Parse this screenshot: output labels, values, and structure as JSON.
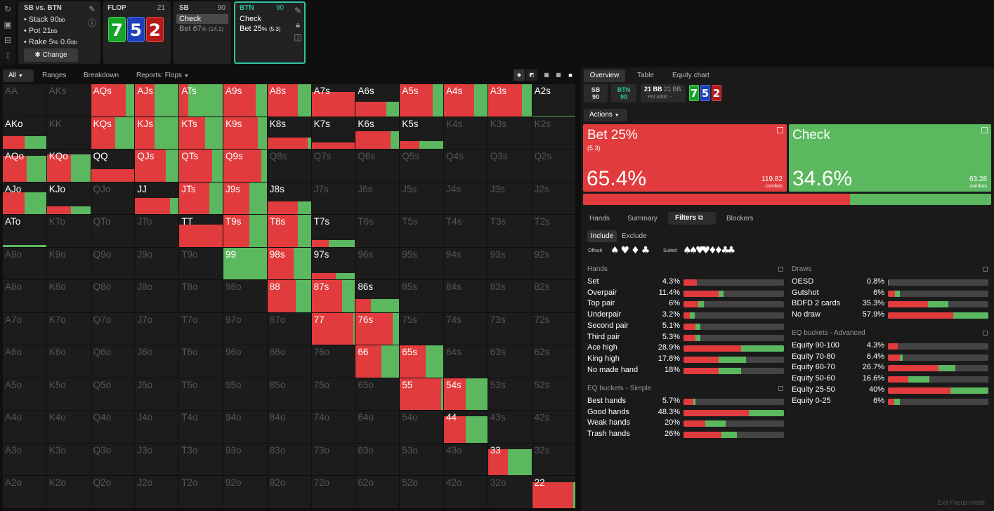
{
  "spot": {
    "title": "SB vs. BTN",
    "items": [
      "Stack 90",
      "Pot 21",
      "Rake 5",
      "0.6"
    ],
    "stack_sub": "bb",
    "pot_sub": "bb",
    "rake_pct": "%",
    "rake_sub": "bb",
    "change": "Change"
  },
  "flop": {
    "label": "FLOP",
    "num": "21",
    "cards": [
      "7",
      "5",
      "2"
    ]
  },
  "sb": {
    "label": "SB",
    "num": "90",
    "action1": "Check",
    "action2": "Bet 67",
    "action2_pct": "%",
    "action2_sub": "(14.1)"
  },
  "btn": {
    "label": "BTN",
    "num": "90",
    "action1": "Check",
    "action2": "Bet 25",
    "action2_pct": "%",
    "action2_sub": "(5.3)"
  },
  "left_tabs": {
    "all": "All",
    "ranges": "Ranges",
    "breakdown": "Breakdown",
    "reports": "Reports: Flops"
  },
  "matrix": {
    "rows": [
      [
        "AA",
        "AKs",
        "AQs",
        "AJs",
        "ATs",
        "A9s",
        "A8s",
        "A7s",
        "A6s",
        "A5s",
        "A4s",
        "A3s",
        "A2s"
      ],
      [
        "AKo",
        "KK",
        "KQs",
        "KJs",
        "KTs",
        "K9s",
        "K8s",
        "K7s",
        "K6s",
        "K5s",
        "K4s",
        "K3s",
        "K2s"
      ],
      [
        "AQo",
        "KQo",
        "QQ",
        "QJs",
        "QTs",
        "Q9s",
        "Q8s",
        "Q7s",
        "Q6s",
        "Q5s",
        "Q4s",
        "Q3s",
        "Q2s"
      ],
      [
        "AJo",
        "KJo",
        "QJo",
        "JJ",
        "JTs",
        "J9s",
        "J8s",
        "J7s",
        "J6s",
        "J5s",
        "J4s",
        "J3s",
        "J2s"
      ],
      [
        "ATo",
        "KTo",
        "QTo",
        "JTo",
        "TT",
        "T9s",
        "T8s",
        "T7s",
        "T6s",
        "T5s",
        "T4s",
        "T3s",
        "T2s"
      ],
      [
        "A9o",
        "K9o",
        "Q9o",
        "J9o",
        "T9o",
        "99",
        "98s",
        "97s",
        "96s",
        "95s",
        "94s",
        "93s",
        "92s"
      ],
      [
        "A8o",
        "K8o",
        "Q8o",
        "J8o",
        "T8o",
        "98o",
        "88",
        "87s",
        "86s",
        "85s",
        "84s",
        "83s",
        "82s"
      ],
      [
        "A7o",
        "K7o",
        "Q7o",
        "J7o",
        "T7o",
        "97o",
        "87o",
        "77",
        "76s",
        "75s",
        "74s",
        "73s",
        "72s"
      ],
      [
        "A6o",
        "K6o",
        "Q6o",
        "J6o",
        "T6o",
        "96o",
        "86o",
        "76o",
        "66",
        "65s",
        "64s",
        "63s",
        "62s"
      ],
      [
        "A5o",
        "K5o",
        "Q5o",
        "J5o",
        "T5o",
        "95o",
        "85o",
        "75o",
        "65o",
        "55",
        "54s",
        "53s",
        "52s"
      ],
      [
        "A4o",
        "K4o",
        "Q4o",
        "J4o",
        "T4o",
        "94o",
        "84o",
        "74o",
        "64o",
        "54o",
        "44",
        "43s",
        "42s"
      ],
      [
        "A3o",
        "K3o",
        "Q3o",
        "J3o",
        "T3o",
        "93o",
        "83o",
        "73o",
        "63o",
        "53o",
        "43o",
        "33",
        "32s"
      ],
      [
        "A2o",
        "K2o",
        "Q2o",
        "J2o",
        "T2o",
        "92o",
        "82o",
        "72o",
        "62o",
        "52o",
        "42o",
        "32o",
        "22"
      ]
    ],
    "freq": {
      "AQs": [
        1,
        0.8
      ],
      "AJs": [
        1,
        0.45
      ],
      "ATs": [
        1,
        0.2
      ],
      "A9s": [
        1,
        0.75
      ],
      "A8s": [
        1,
        0.7
      ],
      "A7s": [
        0.75,
        1
      ],
      "A6s": [
        0.45,
        0.7
      ],
      "A5s": [
        1,
        0.75
      ],
      "A4s": [
        1,
        0.7
      ],
      "A3s": [
        1,
        0.78
      ],
      "A2s": [
        0.02,
        0
      ],
      "AKo": [
        0.4,
        0.5
      ],
      "KQs": [
        1,
        0.55
      ],
      "KJs": [
        1,
        0.45
      ],
      "KTs": [
        1,
        0.6
      ],
      "K9s": [
        1,
        0.8
      ],
      "K8s": [
        0.35,
        0.92
      ],
      "K7s": [
        0.2,
        1
      ],
      "K6s": [
        0.55,
        0.8
      ],
      "K5s": [
        0.25,
        0.45
      ],
      "AQo": [
        0.8,
        0.55
      ],
      "KQo": [
        0.85,
        0.55
      ],
      "QQ": [
        0.38,
        1
      ],
      "QJs": [
        1,
        0.7
      ],
      "QTs": [
        1,
        0.75
      ],
      "Q9s": [
        1,
        0.88
      ],
      "AJo": [
        0.68,
        0.5
      ],
      "KJo": [
        0.25,
        0.55
      ],
      "JJ": [
        0.5,
        0.8
      ],
      "JTs": [
        1,
        0.7
      ],
      "J9s": [
        1,
        0.6
      ],
      "J8s": [
        0.4,
        0.7
      ],
      "ATo": [
        0.05,
        0
      ],
      "TT": [
        0.7,
        1
      ],
      "T9s": [
        1,
        0.6
      ],
      "T8s": [
        1,
        0.7
      ],
      "T7s": [
        0.2,
        0.4
      ],
      "99": [
        1,
        0
      ],
      "98s": [
        1,
        0.6
      ],
      "97s": [
        0.2,
        0.55
      ],
      "88": [
        1,
        0.65
      ],
      "87s": [
        1,
        0.7
      ],
      "86s": [
        0.4,
        0.35
      ],
      "77": [
        1,
        0.96
      ],
      "76s": [
        1,
        0.85
      ],
      "66": [
        1,
        0.6
      ],
      "65s": [
        1,
        0.6
      ],
      "55": [
        1,
        0.95
      ],
      "54s": [
        1,
        0.5
      ],
      "44": [
        0.82,
        0.5
      ],
      "33": [
        0.82,
        0.45
      ],
      "22": [
        0.8,
        0.95
      ]
    }
  },
  "right_tabs": {
    "overview": "Overview",
    "table": "Table",
    "equity": "Equity chart"
  },
  "path": {
    "sb": "SB",
    "sb_num": "90",
    "btn": "BTN",
    "btn_num": "90",
    "pot1": "21 BB",
    "pot2": "21 BB",
    "odds": "Pot odds:",
    "odds_val": "-",
    "cards": [
      "7",
      "5",
      "2"
    ]
  },
  "actions_label": "Actions",
  "bet": {
    "label": "Bet 25%",
    "sub": "(5.3)",
    "pct": "65.4%",
    "combos": "119.82",
    "combos_lbl": "combos"
  },
  "check": {
    "label": "Check",
    "pct": "34.6%",
    "combos": "63.28",
    "combos_lbl": "combos"
  },
  "sub_tabs": {
    "hands": "Hands",
    "summary": "Summary",
    "filters": "Filters",
    "blockers": "Blockers"
  },
  "incl": {
    "include": "Include",
    "exclude": "Exclude",
    "offsuit": "Offsuit",
    "suited": "Suited",
    "suits": [
      "♠",
      "♥",
      "♦",
      "♣"
    ]
  },
  "hands": {
    "title": "Hands",
    "rows": [
      {
        "n": "Set",
        "p": "4.3%",
        "b": 0.13,
        "c": 0.0
      },
      {
        "n": "Overpair",
        "p": "11.4%",
        "b": 0.35,
        "c": 0.05
      },
      {
        "n": "Top pair",
        "p": "6%",
        "b": 0.15,
        "c": 0.05
      },
      {
        "n": "Underpair",
        "p": "3.2%",
        "b": 0.06,
        "c": 0.05
      },
      {
        "n": "Second pair",
        "p": "5.1%",
        "b": 0.12,
        "c": 0.05
      },
      {
        "n": "Third pair",
        "p": "5.3%",
        "b": 0.12,
        "c": 0.05
      },
      {
        "n": "Ace high",
        "p": "28.9%",
        "b": 0.57,
        "c": 0.43
      },
      {
        "n": "King high",
        "p": "17.8%",
        "b": 0.35,
        "c": 0.27
      },
      {
        "n": "No made hand",
        "p": "18%",
        "b": 0.35,
        "c": 0.22
      }
    ]
  },
  "eqsimple": {
    "title": "EQ buckets - Simple",
    "rows": [
      {
        "n": "Best hands",
        "p": "5.7%",
        "b": 0.1,
        "c": 0.02
      },
      {
        "n": "Good hands",
        "p": "48.3%",
        "b": 0.65,
        "c": 0.35
      },
      {
        "n": "Weak hands",
        "p": "20%",
        "b": 0.22,
        "c": 0.2
      },
      {
        "n": "Trash hands",
        "p": "26%",
        "b": 0.38,
        "c": 0.15
      }
    ]
  },
  "draws": {
    "title": "Draws",
    "rows": [
      {
        "n": "OESD",
        "p": "0.8%",
        "b": 0.0,
        "c": 0.01
      },
      {
        "n": "Gutshot",
        "p": "6%",
        "b": 0.07,
        "c": 0.05
      },
      {
        "n": "BDFD 2 cards",
        "p": "35.3%",
        "b": 0.4,
        "c": 0.2
      },
      {
        "n": "No draw",
        "p": "57.9%",
        "b": 0.65,
        "c": 0.35
      }
    ]
  },
  "eqadv": {
    "title": "EQ buckets - Advanced",
    "rows": [
      {
        "n": "Equity 90-100",
        "p": "4.3%",
        "b": 0.1,
        "c": 0.0
      },
      {
        "n": "Equity 70-80",
        "p": "6.4%",
        "b": 0.12,
        "c": 0.03
      },
      {
        "n": "Equity 60-70",
        "p": "26.7%",
        "b": 0.5,
        "c": 0.17
      },
      {
        "n": "Equity 50-60",
        "p": "16.6%",
        "b": 0.2,
        "c": 0.21
      },
      {
        "n": "Equity 25-50",
        "p": "40%",
        "b": 0.62,
        "c": 0.38
      },
      {
        "n": "Equity 0-25",
        "p": "6%",
        "b": 0.06,
        "c": 0.06
      }
    ]
  },
  "exit": "Exit Focus mode",
  "colors": {
    "bet": "#e23b3d",
    "check": "#5cb85f"
  }
}
